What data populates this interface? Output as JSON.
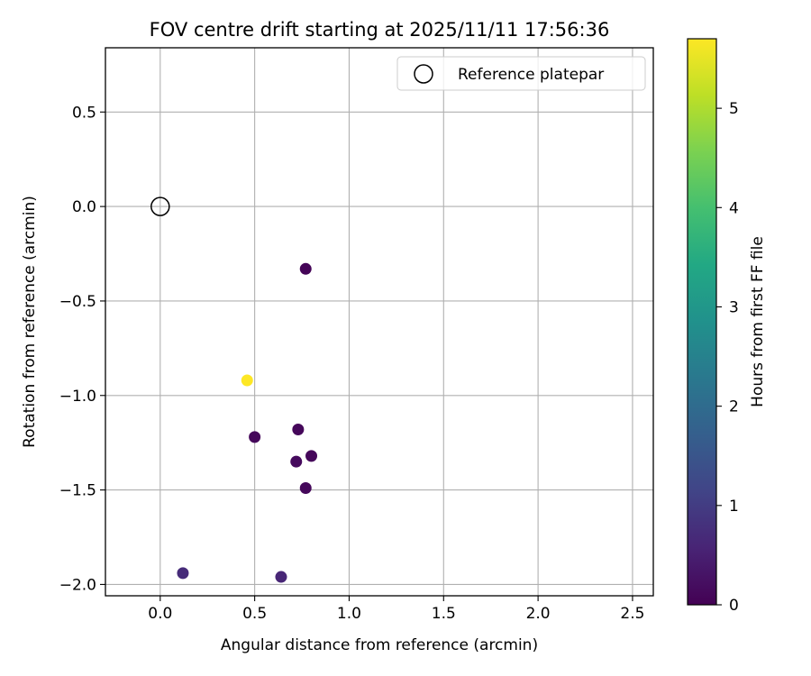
{
  "chart_data": {
    "type": "scatter",
    "title": "FOV centre drift starting at 2025/11/11 17:56:36",
    "xlabel": "Angular distance from reference (arcmin)",
    "ylabel": "Rotation from reference (arcmin)",
    "xlim": [
      -0.29,
      2.61
    ],
    "ylim": [
      -2.06,
      0.84
    ],
    "xticks": [
      0.0,
      0.5,
      1.0,
      1.5,
      2.0,
      2.5
    ],
    "xtick_labels": [
      "0.0",
      "0.5",
      "1.0",
      "1.5",
      "2.0",
      "2.5"
    ],
    "yticks": [
      0.5,
      0.0,
      -0.5,
      -1.0,
      -1.5,
      -2.0
    ],
    "ytick_labels": [
      "0.5",
      "0.0",
      "−0.5",
      "−1.0",
      "−1.5",
      "−2.0"
    ],
    "grid": true,
    "legend": {
      "position": "top-right",
      "entries": [
        "Reference platepar"
      ]
    },
    "reference_point": {
      "x": 0.0,
      "y": 0.0,
      "label": "Reference platepar"
    },
    "points": [
      {
        "x": 0.77,
        "y": -0.33,
        "hours": 0.05
      },
      {
        "x": 0.46,
        "y": -0.92,
        "hours": 5.7
      },
      {
        "x": 0.73,
        "y": -1.18,
        "hours": 0.1
      },
      {
        "x": 0.5,
        "y": -1.22,
        "hours": 0.1
      },
      {
        "x": 0.8,
        "y": -1.32,
        "hours": 0.1
      },
      {
        "x": 0.72,
        "y": -1.35,
        "hours": 0.15
      },
      {
        "x": 0.77,
        "y": -1.49,
        "hours": 0.1
      },
      {
        "x": 0.12,
        "y": -1.94,
        "hours": 0.7
      },
      {
        "x": 0.64,
        "y": -1.96,
        "hours": 0.6
      }
    ],
    "colorbar": {
      "label": "Hours from first FF file",
      "range": [
        0,
        5.7
      ],
      "ticks": [
        0,
        1,
        2,
        3,
        4,
        5
      ],
      "tick_labels": [
        "0",
        "1",
        "2",
        "3",
        "4",
        "5"
      ],
      "colormap": "viridis"
    }
  }
}
